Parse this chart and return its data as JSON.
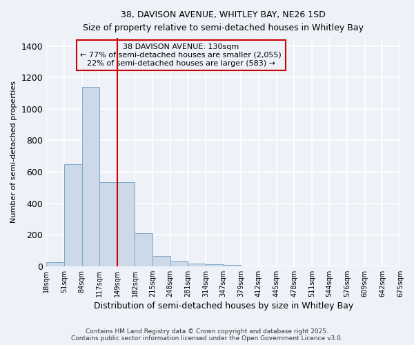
{
  "title": "38, DAVISON AVENUE, WHITLEY BAY, NE26 1SD",
  "subtitle": "Size of property relative to semi-detached houses in Whitley Bay",
  "xlabel": "Distribution of semi-detached houses by size in Whitley Bay",
  "ylabel": "Number of semi-detached properties",
  "bin_labels": [
    "18sqm",
    "51sqm",
    "84sqm",
    "117sqm",
    "149sqm",
    "182sqm",
    "215sqm",
    "248sqm",
    "281sqm",
    "314sqm",
    "347sqm",
    "379sqm",
    "412sqm",
    "445sqm",
    "478sqm",
    "511sqm",
    "544sqm",
    "576sqm",
    "609sqm",
    "642sqm",
    "675sqm"
  ],
  "values": [
    25,
    650,
    1140,
    535,
    535,
    210,
    65,
    35,
    18,
    12,
    8,
    0,
    0,
    0,
    0,
    0,
    0,
    0,
    0,
    0
  ],
  "bar_color": "#ccd9e8",
  "bar_edge_color": "#7aaac8",
  "red_line_bin_index": 3,
  "annotation_title": "38 DAVISON AVENUE: 130sqm",
  "annotation_line1": "← 77% of semi-detached houses are smaller (2,055)",
  "annotation_line2": "22% of semi-detached houses are larger (583) →",
  "annotation_color": "#cc0000",
  "footnote1": "Contains HM Land Registry data © Crown copyright and database right 2025.",
  "footnote2": "Contains public sector information licensed under the Open Government Licence v3.0.",
  "ylim": [
    0,
    1450
  ],
  "background_color": "#eef2f8",
  "grid_color": "#ffffff"
}
